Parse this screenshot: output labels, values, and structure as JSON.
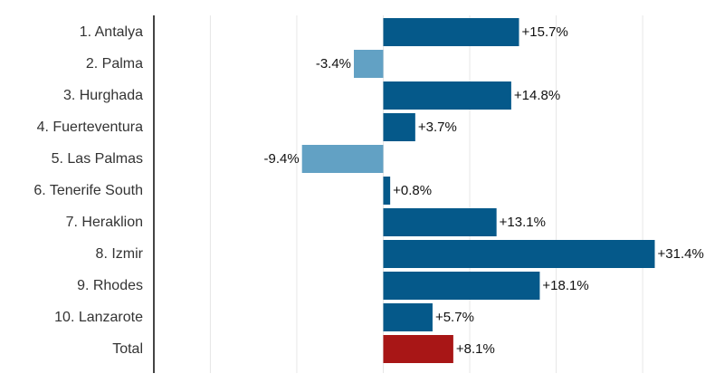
{
  "chart_data": {
    "type": "bar",
    "orientation": "horizontal",
    "categories": [
      "1. Antalya",
      "2. Palma",
      "3. Hurghada",
      "4. Fuerteventura",
      "5. Las Palmas",
      "6. Tenerife South",
      "7. Heraklion",
      "8. Izmir",
      "9. Rhodes",
      "10. Lanzarote",
      "Total"
    ],
    "values": [
      15.7,
      -3.4,
      14.8,
      3.7,
      -9.4,
      0.8,
      13.1,
      31.4,
      18.1,
      5.7,
      8.1
    ],
    "value_labels": [
      "+15.7%",
      "-3.4%",
      "+14.8%",
      "+3.7%",
      "-9.4%",
      "+0.8%",
      "+13.1%",
      "+31.4%",
      "+18.1%",
      "+5.7%",
      "+8.1%"
    ],
    "title": "",
    "xlabel": "",
    "ylabel": "",
    "xlim": [
      -26,
      36
    ],
    "grid": true,
    "colors": {
      "positive": "#05598a",
      "negative": "#62a1c4",
      "total": "#a81616",
      "grid": "#e6e6e6",
      "axis": "#444444"
    }
  }
}
